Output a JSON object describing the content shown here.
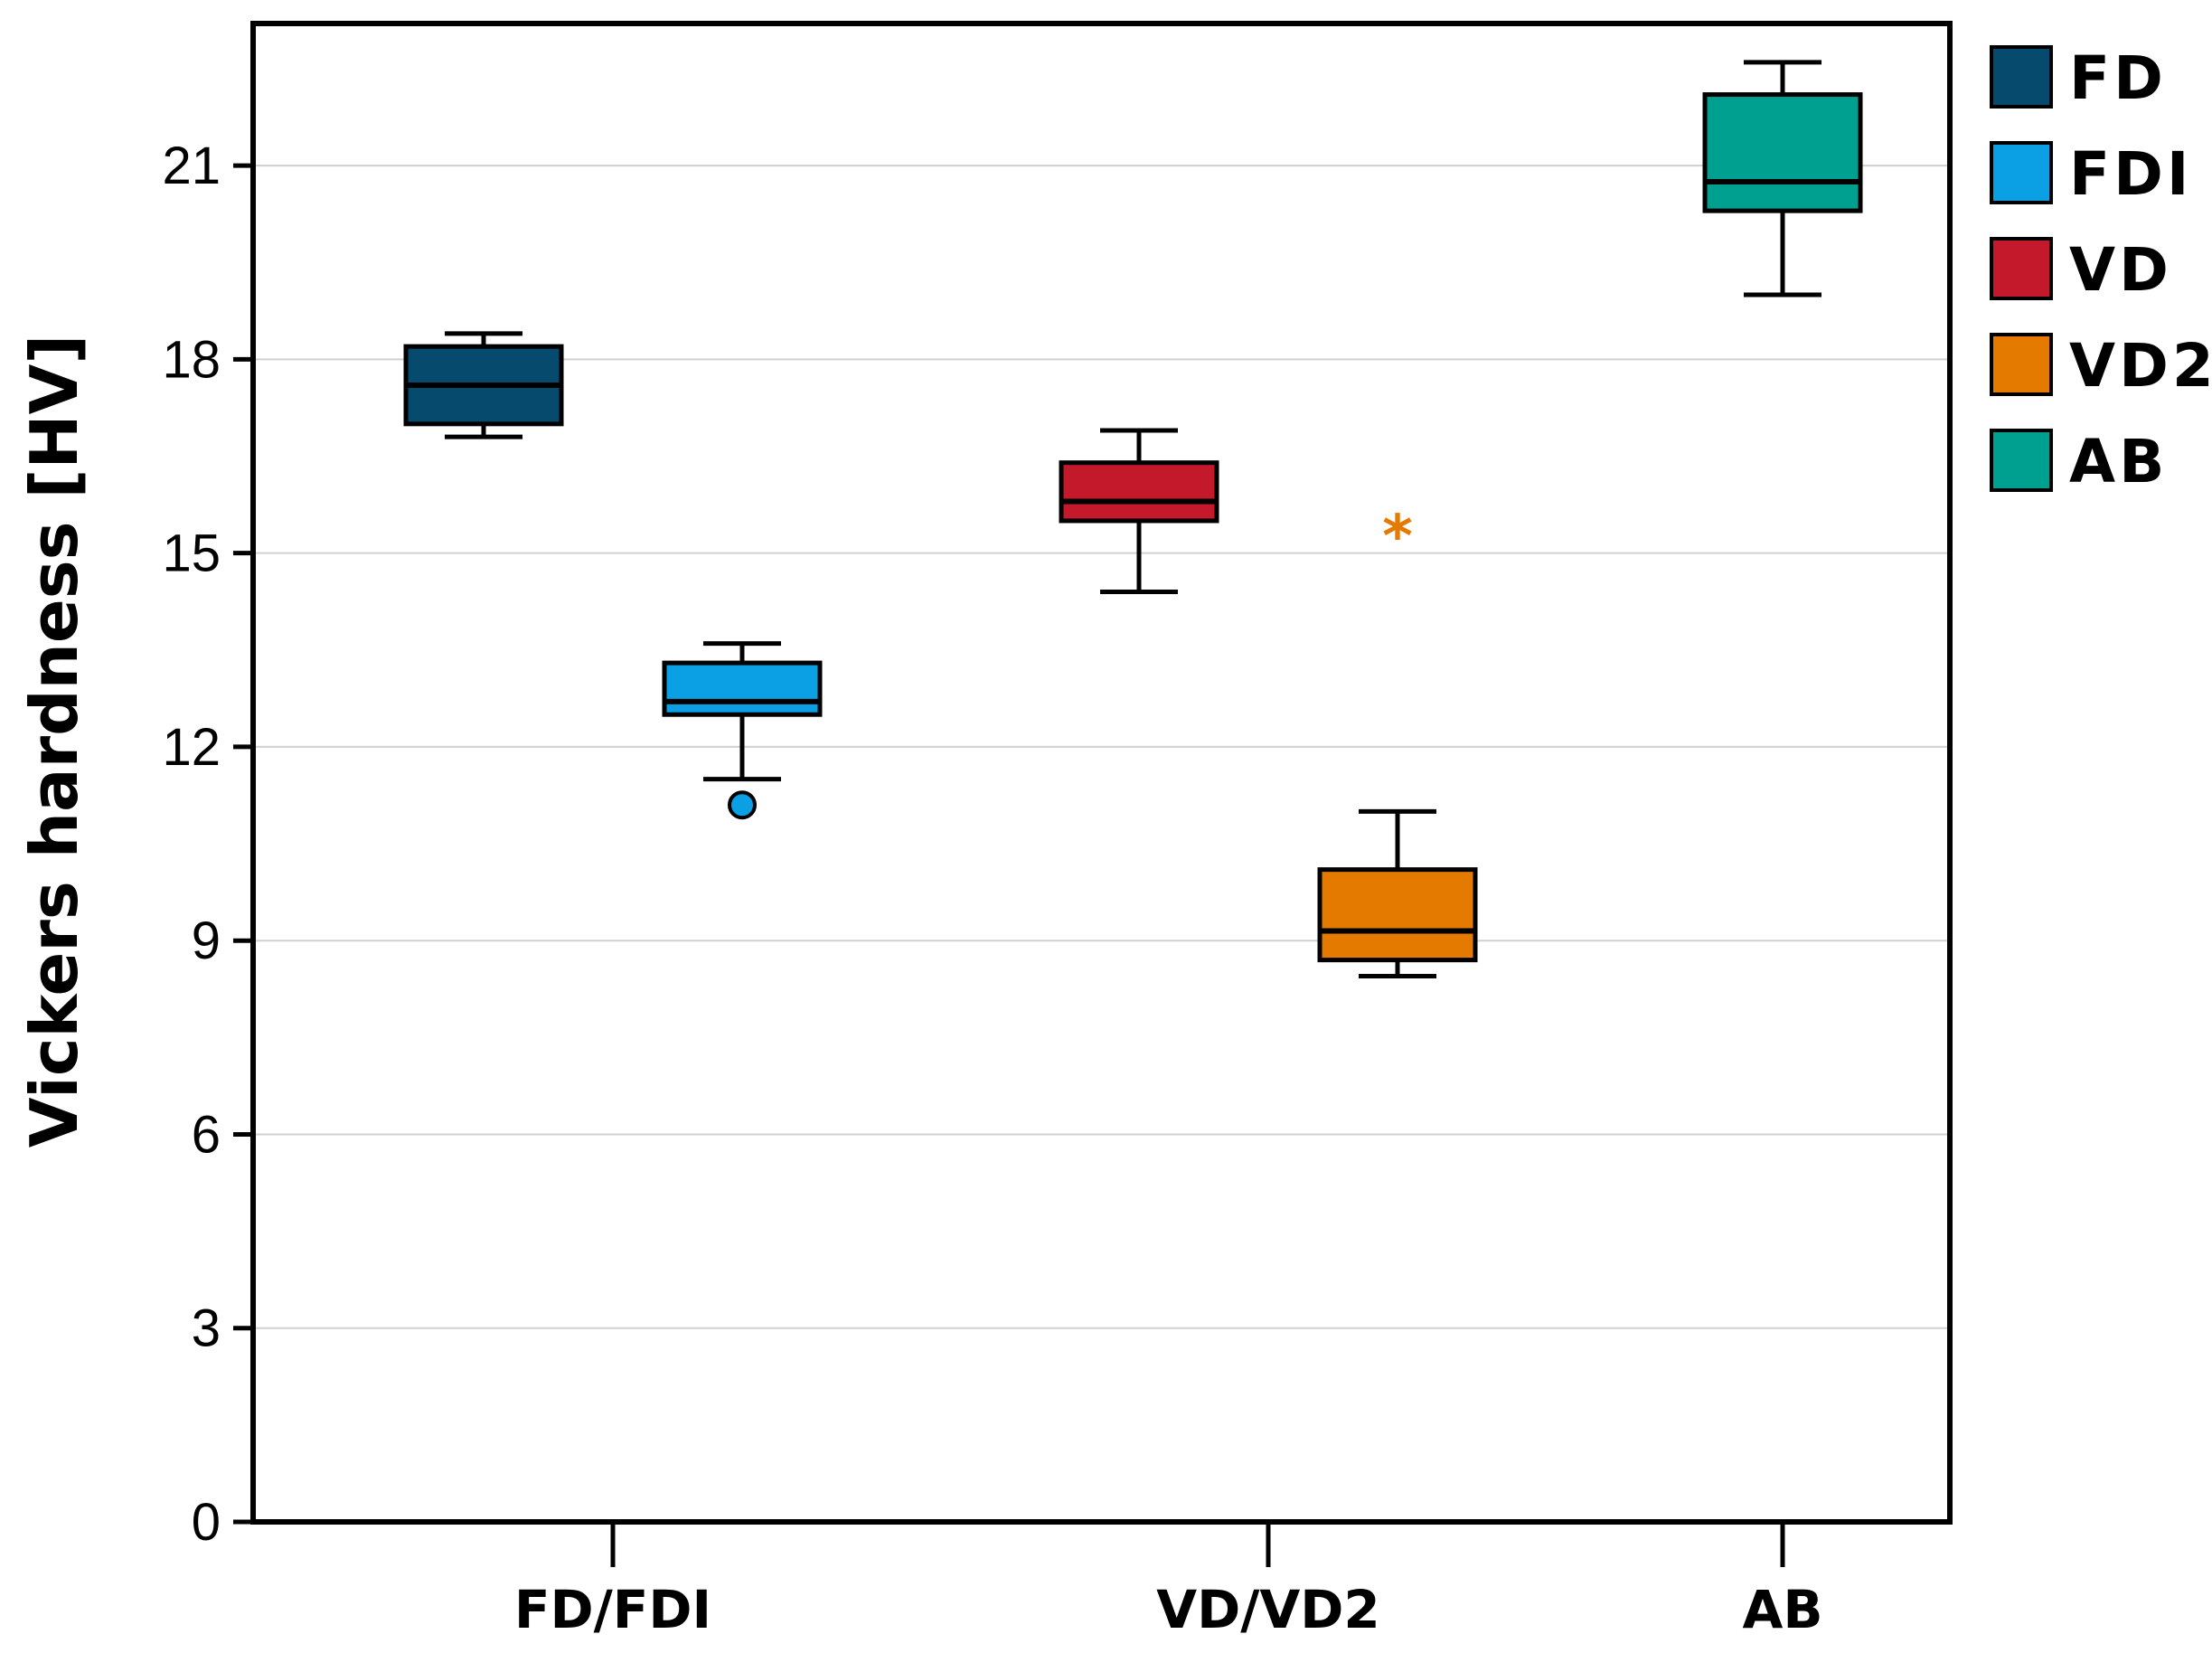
{
  "chart_data": {
    "type": "box",
    "title": "",
    "xlabel": "",
    "ylabel": "Vickers hardness [HV]",
    "ylim": [
      0,
      23.2
    ],
    "yticks": [
      0,
      3,
      6,
      9,
      12,
      15,
      18,
      21
    ],
    "grid": true,
    "legend_position": "right",
    "categories": [
      "FD/FDI",
      "VD/VD2",
      "AB"
    ],
    "series": [
      {
        "name": "FD",
        "color": "#064a6e",
        "category": "FD/FDI",
        "slot": "left",
        "whisker_low": 16.8,
        "q1": 17.0,
        "median": 17.6,
        "q3": 18.2,
        "whisker_high": 18.4,
        "outliers": [],
        "extremes": []
      },
      {
        "name": "FDI",
        "color": "#0b9fe3",
        "category": "FD/FDI",
        "slot": "right",
        "whisker_low": 11.5,
        "q1": 12.5,
        "median": 12.7,
        "q3": 13.3,
        "whisker_high": 13.6,
        "outliers": [
          11.1
        ],
        "extremes": []
      },
      {
        "name": "VD",
        "color": "#c4192a",
        "category": "VD/VD2",
        "slot": "left",
        "whisker_low": 14.4,
        "q1": 15.5,
        "median": 15.8,
        "q3": 16.4,
        "whisker_high": 16.9,
        "outliers": [],
        "extremes": []
      },
      {
        "name": "VD2",
        "color": "#e57a00",
        "category": "VD/VD2",
        "slot": "right",
        "whisker_low": 8.45,
        "q1": 8.7,
        "median": 9.15,
        "q3": 10.1,
        "whisker_high": 11.0,
        "outliers": [],
        "extremes": [
          15.4
        ]
      },
      {
        "name": "AB",
        "color": "#00a090",
        "category": "AB",
        "slot": "center",
        "whisker_low": 19.0,
        "q1": 20.3,
        "median": 20.75,
        "q3": 22.1,
        "whisker_high": 22.6,
        "outliers": [],
        "extremes": []
      }
    ],
    "extreme_marker": "*"
  }
}
